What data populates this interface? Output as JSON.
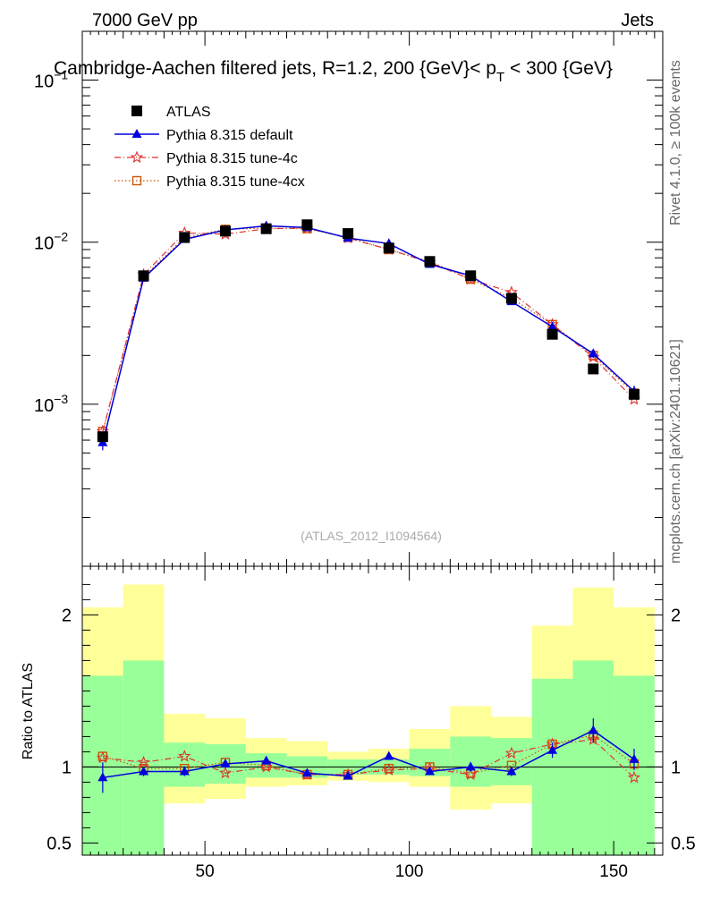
{
  "header": {
    "left": "7000 GeV pp",
    "right": "Jets",
    "title_main": "Cambridge-Aachen filtered jets, R=1.2, 200 {GeV}< p",
    "title_sub": "T",
    "title_end": " < 300 {GeV}",
    "side_top": "Rivet 4.1.0, ≥ 100k events",
    "side_bottom": "mcplots.cern.ch [arXiv:2401.10621]",
    "watermark": "(ATLAS_2012_I1094564)"
  },
  "colors": {
    "atlas": "#000000",
    "pythia_default": "#0000dd",
    "tune4c": "#dd3333",
    "tune4cx": "#cc5500",
    "band_inner": "#99ff99",
    "band_outer": "#ffff99"
  },
  "chart_data": [
    {
      "type": "line",
      "panel": "main",
      "yscale": "log",
      "xlim": [
        20,
        162
      ],
      "ylim": [
        0.0001,
        0.2
      ],
      "yticks": [
        {
          "v": 0.001,
          "base": "10",
          "exp": "−3"
        },
        {
          "v": 0.01,
          "base": "10",
          "exp": "−2"
        },
        {
          "v": 0.1,
          "base": "10",
          "exp": "−1"
        }
      ],
      "x": [
        25,
        35,
        45,
        55,
        65,
        75,
        85,
        95,
        105,
        115,
        125,
        135,
        145,
        155
      ],
      "series": [
        {
          "name": "ATLAS",
          "key": "atlas",
          "marker": "square",
          "values": [
            0.00063,
            0.0062,
            0.0107,
            0.0117,
            0.0121,
            0.0128,
            0.0113,
            0.0092,
            0.0076,
            0.0062,
            0.0045,
            0.0027,
            0.00165,
            0.00115
          ]
        },
        {
          "name": "Pythia 8.315 default",
          "key": "pythia_default",
          "marker": "triangle",
          "values": [
            0.00058,
            0.006,
            0.0104,
            0.0119,
            0.0126,
            0.0123,
            0.0106,
            0.0098,
            0.0073,
            0.0062,
            0.0043,
            0.003,
            0.00205,
            0.0012
          ],
          "errors": [
            6e-05,
            0.0002,
            0.0002,
            0.0002,
            0.0002,
            0.0002,
            0.0002,
            0.0002,
            0.0002,
            0.0002,
            0.0002,
            0.0001,
            0.00012,
            0.0001
          ]
        },
        {
          "name": "Pythia 8.315 tune-4c",
          "key": "tune4c",
          "marker": "star",
          "values": [
            0.00068,
            0.0063,
            0.0114,
            0.0112,
            0.0121,
            0.0122,
            0.0106,
            0.009,
            0.0075,
            0.0059,
            0.0049,
            0.0031,
            0.00195,
            0.00107
          ]
        },
        {
          "name": "Pythia 8.315 tune-4cx",
          "key": "tune4cx",
          "marker": "opensquare",
          "values": [
            0.00068,
            0.0061,
            0.0107,
            0.012,
            0.0122,
            0.0121,
            0.0107,
            0.009,
            0.0076,
            0.0059,
            0.0045,
            0.0031,
            0.002,
            0.00117
          ]
        }
      ]
    },
    {
      "type": "line",
      "panel": "ratio",
      "ylabel": "Ratio to ATLAS",
      "xlim": [
        20,
        162
      ],
      "ylim": [
        0.42,
        2.32
      ],
      "yticks": [
        0.5,
        1,
        2
      ],
      "xticks": [
        50,
        100,
        150
      ],
      "x": [
        25,
        35,
        45,
        55,
        65,
        75,
        85,
        95,
        105,
        115,
        125,
        135,
        145,
        155
      ],
      "bins": [
        [
          20,
          30
        ],
        [
          30,
          40
        ],
        [
          40,
          50
        ],
        [
          50,
          60
        ],
        [
          60,
          70
        ],
        [
          70,
          80
        ],
        [
          80,
          90
        ],
        [
          90,
          100
        ],
        [
          100,
          110
        ],
        [
          110,
          120
        ],
        [
          120,
          130
        ],
        [
          130,
          140
        ],
        [
          140,
          150
        ],
        [
          150,
          160
        ]
      ],
      "band_inner": [
        [
          0.3,
          1.6
        ],
        [
          0.3,
          1.7
        ],
        [
          0.87,
          1.16
        ],
        [
          0.89,
          1.15
        ],
        [
          0.93,
          1.09
        ],
        [
          0.93,
          1.07
        ],
        [
          0.95,
          1.05
        ],
        [
          0.95,
          1.05
        ],
        [
          0.94,
          1.12
        ],
        [
          0.87,
          1.2
        ],
        [
          0.88,
          1.19
        ],
        [
          0.3,
          1.58
        ],
        [
          0.3,
          1.7
        ],
        [
          0.3,
          1.6
        ]
      ],
      "band_outer": [
        [
          0.45,
          2.05
        ],
        [
          0.3,
          2.2
        ],
        [
          0.76,
          1.35
        ],
        [
          0.79,
          1.32
        ],
        [
          0.87,
          1.19
        ],
        [
          0.88,
          1.17
        ],
        [
          0.91,
          1.1
        ],
        [
          0.9,
          1.12
        ],
        [
          0.87,
          1.25
        ],
        [
          0.72,
          1.4
        ],
        [
          0.76,
          1.33
        ],
        [
          0.54,
          1.93
        ],
        [
          0.3,
          2.18
        ],
        [
          0.46,
          2.05
        ]
      ],
      "series": [
        {
          "name": "Pythia 8.315 default",
          "key": "pythia_default",
          "marker": "triangle",
          "values": [
            0.93,
            0.97,
            0.97,
            1.02,
            1.04,
            0.96,
            0.94,
            1.07,
            0.97,
            1.0,
            0.97,
            1.11,
            1.24,
            1.05
          ],
          "errors": [
            0.1,
            0.03,
            0.03,
            0.02,
            0.02,
            0.02,
            0.02,
            0.02,
            0.02,
            0.03,
            0.03,
            0.05,
            0.08,
            0.07
          ]
        },
        {
          "name": "Pythia 8.315 tune-4c",
          "key": "tune4c",
          "marker": "star",
          "values": [
            1.06,
            1.03,
            1.07,
            0.96,
            1.0,
            0.95,
            0.95,
            0.98,
            0.99,
            0.95,
            1.09,
            1.15,
            1.18,
            0.93
          ]
        },
        {
          "name": "Pythia 8.315 tune-4cx",
          "key": "tune4cx",
          "marker": "opensquare",
          "values": [
            1.07,
            0.99,
            0.99,
            1.03,
            1.01,
            0.95,
            0.95,
            0.99,
            1.0,
            0.96,
            1.01,
            1.15,
            1.21,
            1.02
          ]
        }
      ]
    }
  ]
}
